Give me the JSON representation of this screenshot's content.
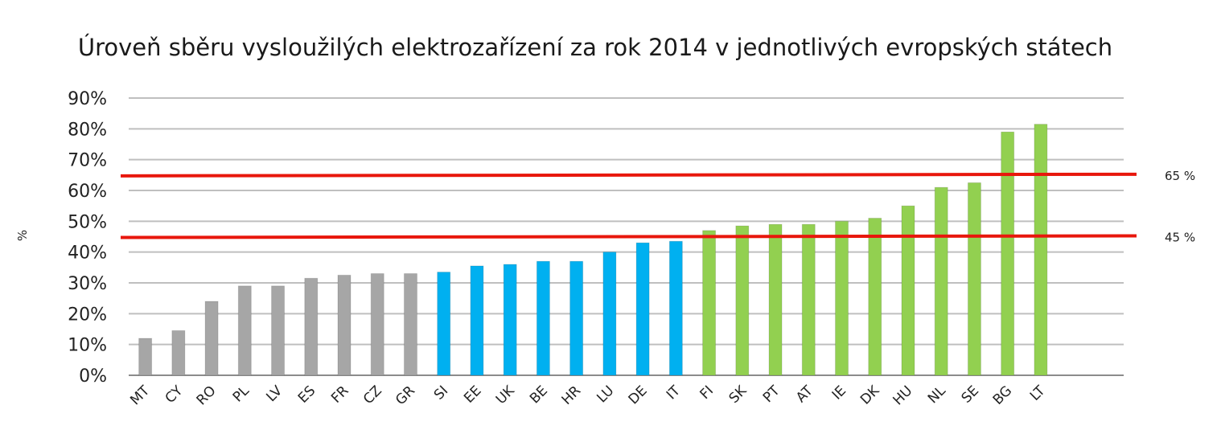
{
  "chart_data": {
    "type": "bar",
    "title": "Úroveň sběru vysloužilých elektrozařízení za rok 2014  v jednotlivých evropských státech",
    "ylabel": "%",
    "xlabel": "",
    "ylim": [
      0,
      90
    ],
    "yticks": [
      "0%",
      "10%",
      "20%",
      "30%",
      "40%",
      "50%",
      "60%",
      "70%",
      "80%",
      "90%"
    ],
    "grid": true,
    "categories": [
      "MT",
      "CY",
      "RO",
      "PL",
      "LV",
      "ES",
      "FR",
      "CZ",
      "GR",
      "SI",
      "EE",
      "UK",
      "BE",
      "HR",
      "LU",
      "DE",
      "IT",
      "FI",
      "SK",
      "PT",
      "AT",
      "IE",
      "DK",
      "HU",
      "NL",
      "SE",
      "BG",
      "LT"
    ],
    "values": [
      12,
      14.5,
      24,
      29,
      29,
      31.5,
      32.5,
      33,
      33,
      33.5,
      35.5,
      36,
      37,
      37,
      40,
      43,
      43.5,
      47,
      48.5,
      49,
      49,
      50,
      51,
      55,
      61,
      62.5,
      79,
      81.5
    ],
    "bar_groups": [
      {
        "from": 0,
        "to": 8,
        "color": "#a6a6a6"
      },
      {
        "from": 9,
        "to": 16,
        "color": "#00b0f0"
      },
      {
        "from": 17,
        "to": 27,
        "color": "#92d050"
      }
    ],
    "reference_lines": [
      {
        "value": 65,
        "label": "65 %",
        "color": "#e8170c"
      },
      {
        "value": 45,
        "label": "45 %",
        "color": "#e8170c"
      }
    ]
  }
}
